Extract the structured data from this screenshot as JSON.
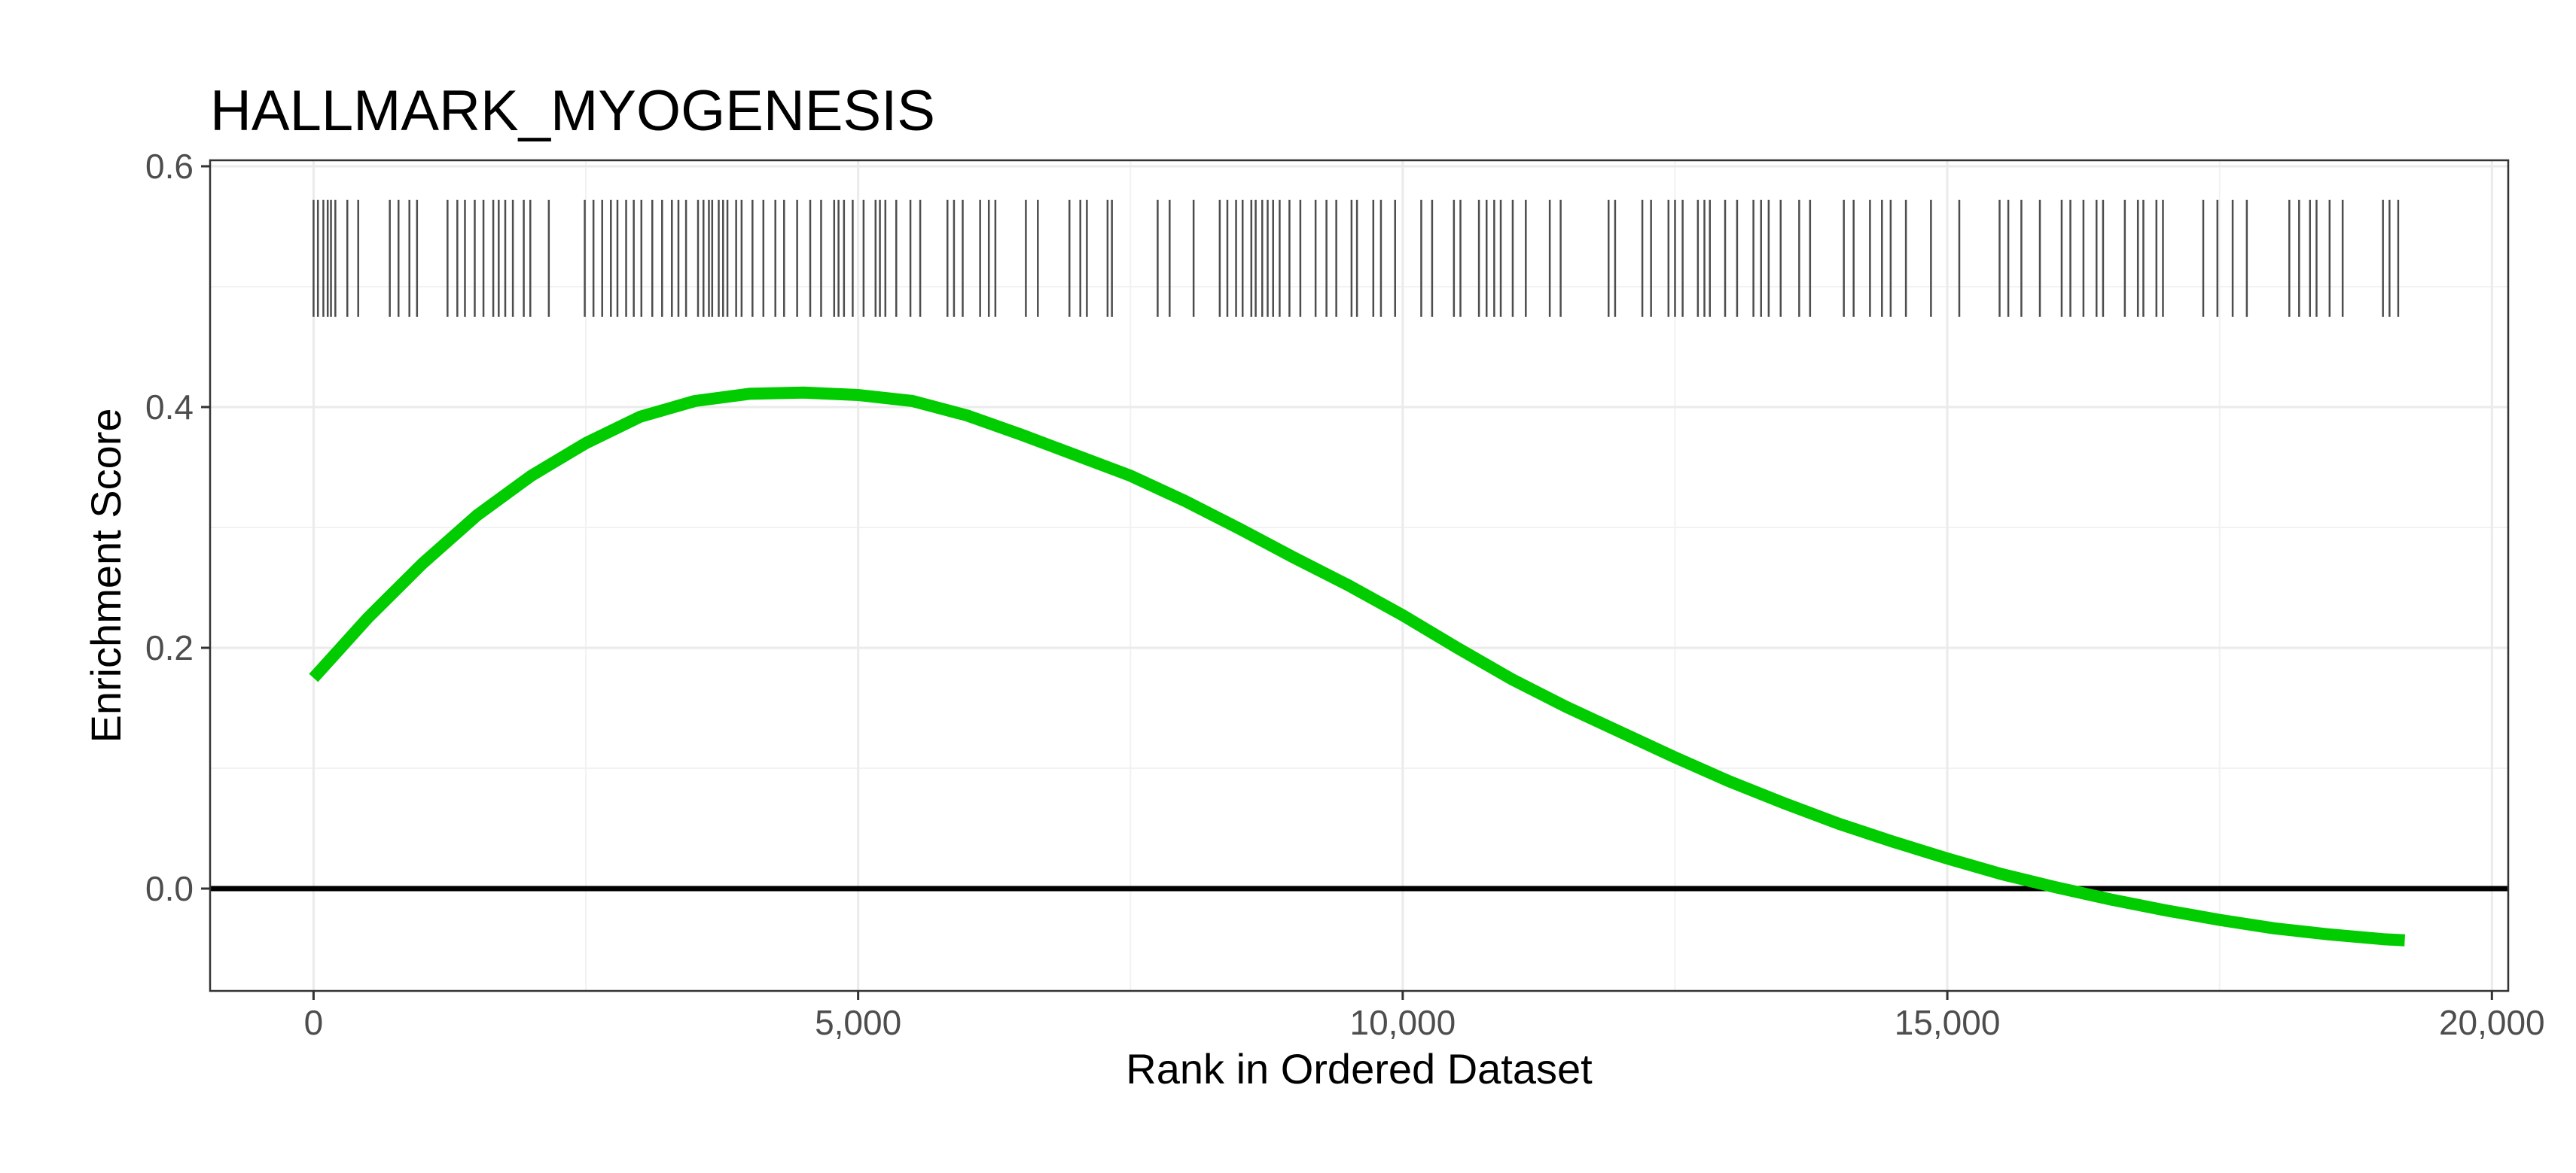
{
  "chart_data": {
    "type": "line",
    "title": "HALLMARK_MYOGENESIS",
    "xlabel": "Rank in Ordered Dataset",
    "ylabel": "Enrichment Score",
    "xlim": [
      -950,
      20150
    ],
    "ylim": [
      -0.085,
      0.605
    ],
    "xticks": [
      0,
      5000,
      10000,
      15000,
      20000
    ],
    "xtick_labels": [
      "0",
      "5,000",
      "10,000",
      "15,000",
      "20,000"
    ],
    "yticks": [
      0.0,
      0.2,
      0.4,
      0.6
    ],
    "ytick_labels": [
      "0.0",
      "0.2",
      "0.4",
      "0.6"
    ],
    "grid": true,
    "hline_y": 0,
    "series": [
      {
        "color": "#00cc00",
        "x": [
          0,
          500,
          1000,
          1500,
          2000,
          2500,
          3000,
          3500,
          4000,
          4500,
          5000,
          5500,
          6000,
          6500,
          7000,
          7500,
          8000,
          8500,
          9000,
          9500,
          10000,
          10500,
          11000,
          11500,
          12000,
          12500,
          13000,
          13500,
          14000,
          14500,
          15000,
          15500,
          16000,
          16500,
          17000,
          17500,
          18000,
          18500,
          19000,
          19200
        ],
        "values": [
          0.175,
          0.225,
          0.27,
          0.31,
          0.343,
          0.37,
          0.392,
          0.405,
          0.411,
          0.412,
          0.41,
          0.405,
          0.393,
          0.377,
          0.36,
          0.343,
          0.322,
          0.299,
          0.275,
          0.252,
          0.227,
          0.2,
          0.174,
          0.151,
          0.13,
          0.109,
          0.089,
          0.071,
          0.054,
          0.039,
          0.025,
          0.012,
          0.001,
          -0.009,
          -0.018,
          -0.026,
          -0.033,
          -0.038,
          -0.042,
          -0.043
        ]
      }
    ],
    "hits": {
      "color": "#4d4d4d",
      "ymin": 0.475,
      "ymax": 0.572,
      "positions": [
        0,
        40,
        90,
        130,
        160,
        200,
        310,
        410,
        700,
        780,
        880,
        950,
        1230,
        1320,
        1390,
        1480,
        1560,
        1650,
        1700,
        1760,
        1830,
        1930,
        1990,
        2160,
        2490,
        2570,
        2650,
        2730,
        2790,
        2870,
        2940,
        3010,
        3110,
        3200,
        3290,
        3350,
        3420,
        3530,
        3580,
        3630,
        3660,
        3720,
        3760,
        3800,
        3880,
        3930,
        4030,
        4130,
        4240,
        4320,
        4440,
        4560,
        4660,
        4780,
        4820,
        4870,
        4950,
        5050,
        5160,
        5200,
        5250,
        5350,
        5480,
        5570,
        5820,
        5880,
        5960,
        6120,
        6200,
        6260,
        6540,
        6650,
        6940,
        7040,
        7100,
        7290,
        7330,
        7750,
        7860,
        8080,
        8320,
        8390,
        8470,
        8530,
        8610,
        8650,
        8710,
        8760,
        8810,
        8870,
        8960,
        9060,
        9200,
        9300,
        9390,
        9530,
        9580,
        9730,
        9800,
        9930,
        10170,
        10270,
        10470,
        10530,
        10700,
        10770,
        10840,
        10900,
        11010,
        11130,
        11350,
        11450,
        11890,
        11950,
        12200,
        12280,
        12440,
        12500,
        12570,
        12710,
        12770,
        12820,
        12960,
        13070,
        13220,
        13290,
        13360,
        13470,
        13640,
        13740,
        14050,
        14140,
        14290,
        14400,
        14480,
        14620,
        14850,
        15110,
        15480,
        15560,
        15680,
        15850,
        16050,
        16130,
        16250,
        16370,
        16430,
        16630,
        16750,
        16800,
        16920,
        16980,
        17350,
        17480,
        17620,
        17750,
        18140,
        18230,
        18330,
        18390,
        18510,
        18630,
        19000,
        19060,
        19140
      ]
    }
  }
}
